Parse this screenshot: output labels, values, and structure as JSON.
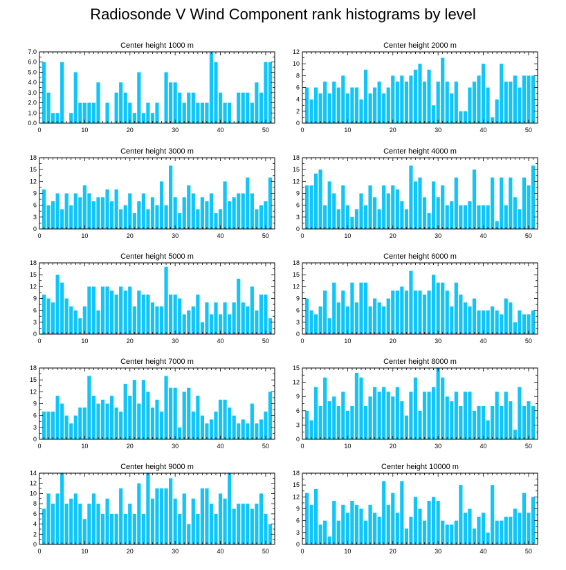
{
  "title": "Radiosonde V Wind Component rank histograms by level",
  "bar_color": "#11c5f9",
  "chart_data": [
    {
      "type": "bar",
      "title": "Center height 1000 m",
      "xlim": [
        0,
        52
      ],
      "ylim": [
        0,
        7
      ],
      "xticks": [
        0,
        10,
        20,
        30,
        40,
        50
      ],
      "yticks": [
        0,
        1,
        2,
        3,
        4,
        5,
        6,
        7
      ],
      "ytick_labels": [
        "0.0",
        "1.0",
        "2.0",
        "3.0",
        "4.0",
        "5.0",
        "6.0",
        "7.0"
      ],
      "x": [
        1,
        2,
        3,
        4,
        5,
        6,
        7,
        8,
        9,
        10,
        11,
        12,
        13,
        14,
        15,
        16,
        17,
        18,
        19,
        20,
        21,
        22,
        23,
        24,
        25,
        26,
        27,
        28,
        29,
        30,
        31,
        32,
        33,
        34,
        35,
        36,
        37,
        38,
        39,
        40,
        41,
        42,
        43,
        44,
        45,
        46,
        47,
        48,
        49,
        50,
        51
      ],
      "values": [
        6,
        3,
        1,
        1,
        6,
        0,
        1,
        5,
        2,
        2,
        2,
        2,
        4,
        0,
        2,
        0,
        3,
        4,
        3,
        2,
        1,
        5,
        1,
        2,
        1,
        2,
        0,
        5,
        4,
        4,
        3,
        2,
        3,
        3,
        2,
        2,
        2,
        7,
        6,
        3,
        2,
        2,
        0,
        3,
        3,
        3,
        2,
        4,
        3,
        6,
        6
      ]
    },
    {
      "type": "bar",
      "title": "Center height 2000 m",
      "xlim": [
        0,
        52
      ],
      "ylim": [
        0,
        12
      ],
      "xticks": [
        0,
        10,
        20,
        30,
        40,
        50
      ],
      "yticks": [
        0,
        2,
        4,
        6,
        8,
        10,
        12
      ],
      "ytick_labels": [
        "0",
        "2",
        "4",
        "6",
        "8",
        "10",
        "12"
      ],
      "x": [
        1,
        2,
        3,
        4,
        5,
        6,
        7,
        8,
        9,
        10,
        11,
        12,
        13,
        14,
        15,
        16,
        17,
        18,
        19,
        20,
        21,
        22,
        23,
        24,
        25,
        26,
        27,
        28,
        29,
        30,
        31,
        32,
        33,
        34,
        35,
        36,
        37,
        38,
        39,
        40,
        41,
        42,
        43,
        44,
        45,
        46,
        47,
        48,
        49,
        50,
        51
      ],
      "values": [
        6,
        4,
        6,
        5,
        7,
        5,
        7,
        6,
        8,
        5,
        6,
        6,
        4,
        9,
        5,
        6,
        7,
        5,
        6,
        8,
        7,
        8,
        7,
        8,
        9,
        10,
        7,
        9,
        3,
        7,
        11,
        7,
        5,
        7,
        2,
        2,
        6,
        7,
        8,
        10,
        6,
        1,
        4,
        10,
        7,
        7,
        8,
        6,
        8,
        8,
        8
      ]
    },
    {
      "type": "bar",
      "title": "Center height 3000 m",
      "xlim": [
        0,
        52
      ],
      "ylim": [
        0,
        18
      ],
      "xticks": [
        0,
        10,
        20,
        30,
        40,
        50
      ],
      "yticks": [
        0,
        3,
        6,
        9,
        12,
        15,
        18
      ],
      "ytick_labels": [
        "0",
        "3",
        "6",
        "9",
        "12",
        "15",
        "18"
      ],
      "x": [
        1,
        2,
        3,
        4,
        5,
        6,
        7,
        8,
        9,
        10,
        11,
        12,
        13,
        14,
        15,
        16,
        17,
        18,
        19,
        20,
        21,
        22,
        23,
        24,
        25,
        26,
        27,
        28,
        29,
        30,
        31,
        32,
        33,
        34,
        35,
        36,
        37,
        38,
        39,
        40,
        41,
        42,
        43,
        44,
        45,
        46,
        47,
        48,
        49,
        50,
        51
      ],
      "values": [
        10,
        6,
        7,
        9,
        5,
        9,
        6,
        9,
        8,
        11,
        9,
        7,
        8,
        8,
        10,
        7,
        10,
        5,
        6,
        9,
        4,
        7,
        9,
        5,
        8,
        6,
        12,
        6,
        16,
        8,
        4,
        8,
        11,
        9,
        5,
        8,
        7,
        9,
        4,
        5,
        12,
        7,
        8,
        9,
        9,
        13,
        9,
        5,
        6,
        7,
        13
      ]
    },
    {
      "type": "bar",
      "title": "Center height 4000 m",
      "xlim": [
        0,
        52
      ],
      "ylim": [
        0,
        18
      ],
      "xticks": [
        0,
        10,
        20,
        30,
        40,
        50
      ],
      "yticks": [
        0,
        3,
        6,
        9,
        12,
        15,
        18
      ],
      "ytick_labels": [
        "0",
        "3",
        "6",
        "9",
        "12",
        "15",
        "18"
      ],
      "x": [
        1,
        2,
        3,
        4,
        5,
        6,
        7,
        8,
        9,
        10,
        11,
        12,
        13,
        14,
        15,
        16,
        17,
        18,
        19,
        20,
        21,
        22,
        23,
        24,
        25,
        26,
        27,
        28,
        29,
        30,
        31,
        32,
        33,
        34,
        35,
        36,
        37,
        38,
        39,
        40,
        41,
        42,
        43,
        44,
        45,
        46,
        47,
        48,
        49,
        50,
        51
      ],
      "values": [
        11,
        11,
        14,
        15,
        6,
        12,
        9,
        5,
        11,
        6,
        3,
        5,
        9,
        6,
        11,
        8,
        5,
        11,
        9,
        11,
        10,
        7,
        5,
        16,
        12,
        13,
        8,
        4,
        12,
        8,
        11,
        6,
        7,
        13,
        6,
        6,
        7,
        15,
        6,
        6,
        6,
        13,
        2,
        13,
        6,
        13,
        8,
        5,
        13,
        11,
        16
      ]
    },
    {
      "type": "bar",
      "title": "Center height 5000 m",
      "xlim": [
        0,
        52
      ],
      "ylim": [
        0,
        18
      ],
      "xticks": [
        0,
        10,
        20,
        30,
        40,
        50
      ],
      "yticks": [
        0,
        3,
        6,
        9,
        12,
        15,
        18
      ],
      "ytick_labels": [
        "0",
        "3",
        "6",
        "9",
        "12",
        "15",
        "18"
      ],
      "x": [
        1,
        2,
        3,
        4,
        5,
        6,
        7,
        8,
        9,
        10,
        11,
        12,
        13,
        14,
        15,
        16,
        17,
        18,
        19,
        20,
        21,
        22,
        23,
        24,
        25,
        26,
        27,
        28,
        29,
        30,
        31,
        32,
        33,
        34,
        35,
        36,
        37,
        38,
        39,
        40,
        41,
        42,
        43,
        44,
        45,
        46,
        47,
        48,
        49,
        50,
        51
      ],
      "values": [
        10,
        9,
        8,
        15,
        13,
        9,
        7,
        6,
        4,
        7,
        12,
        12,
        6,
        12,
        12,
        11,
        10,
        12,
        11,
        12,
        7,
        11,
        10,
        10,
        8,
        7,
        7,
        17,
        10,
        10,
        9,
        5,
        6,
        7,
        10,
        3,
        8,
        5,
        8,
        5,
        8,
        5,
        8,
        14,
        8,
        7,
        12,
        6,
        10,
        10,
        4
      ]
    },
    {
      "type": "bar",
      "title": "Center height 6000 m",
      "xlim": [
        0,
        52
      ],
      "ylim": [
        0,
        18
      ],
      "xticks": [
        0,
        10,
        20,
        30,
        40,
        50
      ],
      "yticks": [
        0,
        3,
        6,
        9,
        12,
        15,
        18
      ],
      "ytick_labels": [
        "0",
        "3",
        "6",
        "9",
        "12",
        "15",
        "18"
      ],
      "x": [
        1,
        2,
        3,
        4,
        5,
        6,
        7,
        8,
        9,
        10,
        11,
        12,
        13,
        14,
        15,
        16,
        17,
        18,
        19,
        20,
        21,
        22,
        23,
        24,
        25,
        26,
        27,
        28,
        29,
        30,
        31,
        32,
        33,
        34,
        35,
        36,
        37,
        38,
        39,
        40,
        41,
        42,
        43,
        44,
        45,
        46,
        47,
        48,
        49,
        50,
        51
      ],
      "values": [
        9,
        6,
        5,
        7,
        11,
        4,
        13,
        8,
        11,
        7,
        13,
        8,
        13,
        13,
        7,
        9,
        8,
        7,
        9,
        11,
        11,
        12,
        11,
        16,
        11,
        11,
        10,
        11,
        15,
        13,
        13,
        11,
        7,
        13,
        10,
        8,
        7,
        9,
        6,
        6,
        6,
        7,
        6,
        5,
        9,
        8,
        3,
        6,
        5,
        5,
        6
      ]
    },
    {
      "type": "bar",
      "title": "Center height 7000 m",
      "xlim": [
        0,
        52
      ],
      "ylim": [
        0,
        18
      ],
      "xticks": [
        0,
        10,
        20,
        30,
        40,
        50
      ],
      "yticks": [
        0,
        3,
        6,
        9,
        12,
        15,
        18
      ],
      "ytick_labels": [
        "0",
        "3",
        "6",
        "9",
        "12",
        "15",
        "18"
      ],
      "x": [
        1,
        2,
        3,
        4,
        5,
        6,
        7,
        8,
        9,
        10,
        11,
        12,
        13,
        14,
        15,
        16,
        17,
        18,
        19,
        20,
        21,
        22,
        23,
        24,
        25,
        26,
        27,
        28,
        29,
        30,
        31,
        32,
        33,
        34,
        35,
        36,
        37,
        38,
        39,
        40,
        41,
        42,
        43,
        44,
        45,
        46,
        47,
        48,
        49,
        50,
        51
      ],
      "values": [
        7,
        7,
        7,
        11,
        9,
        6,
        4,
        6,
        8,
        8,
        16,
        11,
        9,
        10,
        9,
        11,
        8,
        7,
        14,
        11,
        15,
        9,
        15,
        12,
        8,
        10,
        7,
        16,
        13,
        13,
        3,
        12,
        13,
        7,
        11,
        6,
        4,
        5,
        7,
        10,
        10,
        8,
        6,
        4,
        5,
        4,
        9,
        4,
        5,
        7,
        12
      ]
    },
    {
      "type": "bar",
      "title": "Center height 8000 m",
      "xlim": [
        0,
        52
      ],
      "ylim": [
        0,
        15
      ],
      "xticks": [
        0,
        10,
        20,
        30,
        40,
        50
      ],
      "yticks": [
        0,
        3,
        6,
        9,
        12,
        15
      ],
      "ytick_labels": [
        "0",
        "3",
        "6",
        "9",
        "12",
        "15"
      ],
      "x": [
        1,
        2,
        3,
        4,
        5,
        6,
        7,
        8,
        9,
        10,
        11,
        12,
        13,
        14,
        15,
        16,
        17,
        18,
        19,
        20,
        21,
        22,
        23,
        24,
        25,
        26,
        27,
        28,
        29,
        30,
        31,
        32,
        33,
        34,
        35,
        36,
        37,
        38,
        39,
        40,
        41,
        42,
        43,
        44,
        45,
        46,
        47,
        48,
        49,
        50,
        51
      ],
      "values": [
        6,
        4,
        11,
        7,
        13,
        8,
        9,
        7,
        10,
        6,
        7,
        14,
        13,
        7,
        9,
        11,
        10,
        11,
        10,
        9,
        11,
        8,
        5,
        10,
        13,
        6,
        10,
        10,
        11,
        15,
        13,
        9,
        8,
        10,
        7,
        10,
        10,
        6,
        7,
        7,
        4,
        7,
        10,
        7,
        10,
        8,
        2,
        11,
        7,
        8,
        7
      ]
    },
    {
      "type": "bar",
      "title": "Center height 9000 m",
      "xlim": [
        0,
        52
      ],
      "ylim": [
        0,
        14
      ],
      "xticks": [
        0,
        10,
        20,
        30,
        40,
        50
      ],
      "yticks": [
        0,
        2,
        4,
        6,
        8,
        10,
        12,
        14
      ],
      "ytick_labels": [
        "0",
        "2",
        "4",
        "6",
        "8",
        "10",
        "12",
        "14"
      ],
      "x": [
        1,
        2,
        3,
        4,
        5,
        6,
        7,
        8,
        9,
        10,
        11,
        12,
        13,
        14,
        15,
        16,
        17,
        18,
        19,
        20,
        21,
        22,
        23,
        24,
        25,
        26,
        27,
        28,
        29,
        30,
        31,
        32,
        33,
        34,
        35,
        36,
        37,
        38,
        39,
        40,
        41,
        42,
        43,
        44,
        45,
        46,
        47,
        48,
        49,
        50,
        51
      ],
      "values": [
        7,
        10,
        8,
        10,
        14,
        8,
        9,
        10,
        8,
        5,
        8,
        10,
        8,
        6,
        9,
        6,
        6,
        11,
        6,
        8,
        6,
        12,
        6,
        14,
        9,
        11,
        11,
        11,
        13,
        9,
        6,
        10,
        4,
        9,
        6,
        11,
        11,
        8,
        6,
        10,
        9,
        14,
        7,
        8,
        8,
        8,
        7,
        8,
        10,
        6,
        4
      ]
    },
    {
      "type": "bar",
      "title": "Center height 10000 m",
      "xlim": [
        0,
        52
      ],
      "ylim": [
        0,
        18
      ],
      "xticks": [
        0,
        10,
        20,
        30,
        40,
        50
      ],
      "yticks": [
        0,
        3,
        6,
        9,
        12,
        15,
        18
      ],
      "ytick_labels": [
        "0",
        "3",
        "6",
        "9",
        "12",
        "15",
        "18"
      ],
      "x": [
        1,
        2,
        3,
        4,
        5,
        6,
        7,
        8,
        9,
        10,
        11,
        12,
        13,
        14,
        15,
        16,
        17,
        18,
        19,
        20,
        21,
        22,
        23,
        24,
        25,
        26,
        27,
        28,
        29,
        30,
        31,
        32,
        33,
        34,
        35,
        36,
        37,
        38,
        39,
        40,
        41,
        42,
        43,
        44,
        45,
        46,
        47,
        48,
        49,
        50,
        51
      ],
      "values": [
        13,
        10,
        14,
        5,
        6,
        2,
        11,
        6,
        10,
        8,
        11,
        10,
        9,
        6,
        10,
        8,
        7,
        16,
        10,
        13,
        8,
        16,
        4,
        7,
        12,
        9,
        6,
        11,
        12,
        11,
        6,
        5,
        5,
        6,
        15,
        8,
        9,
        4,
        7,
        8,
        3,
        15,
        6,
        6,
        7,
        7,
        9,
        8,
        13,
        8,
        12
      ]
    }
  ]
}
